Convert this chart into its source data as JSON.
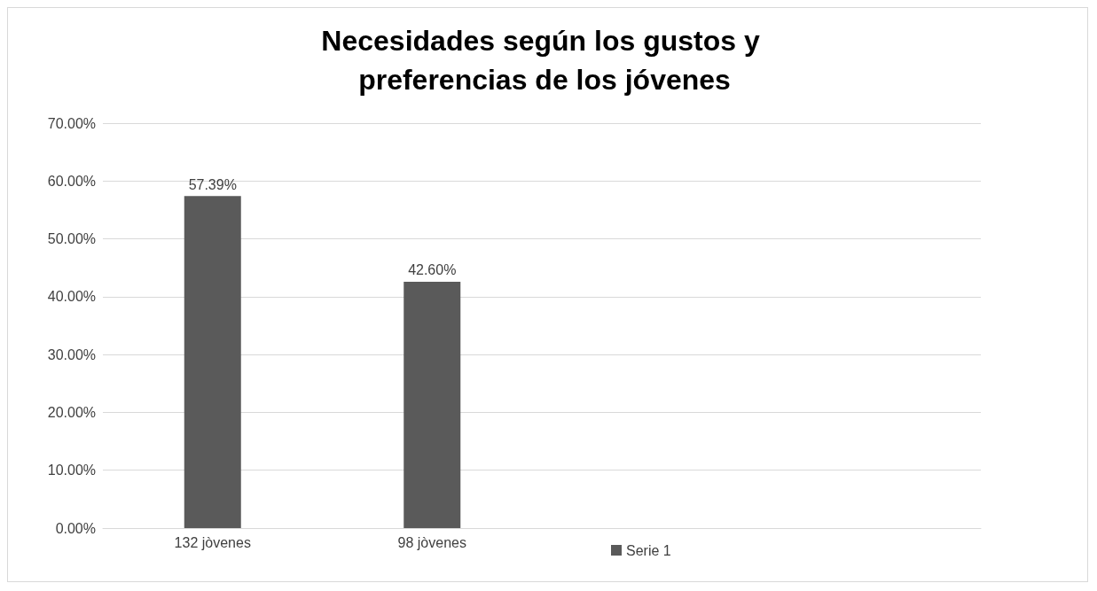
{
  "chart_data": {
    "type": "bar",
    "title": "Necesidades según los gustos y preferencias de los jóvenes",
    "categories": [
      "132 jòvenes",
      "98 jòvenes",
      null,
      null
    ],
    "series": [
      {
        "name": "Serie 1",
        "color": "#5a5a5a",
        "values": [
          57.39,
          42.6,
          null,
          null
        ],
        "value_labels": [
          "57.39%",
          "42.60%",
          null,
          null
        ]
      }
    ],
    "ylim": [
      0,
      70
    ],
    "yticks": [
      {
        "value": 0,
        "label": "0.00%"
      },
      {
        "value": 10,
        "label": "10.00%"
      },
      {
        "value": 20,
        "label": "20.00%"
      },
      {
        "value": 30,
        "label": "30.00%"
      },
      {
        "value": 40,
        "label": "40.00%"
      },
      {
        "value": 50,
        "label": "50.00%"
      },
      {
        "value": 60,
        "label": "60.00%"
      },
      {
        "value": 70,
        "label": "70.00%"
      }
    ],
    "grid": "y",
    "legend": "bottom"
  }
}
